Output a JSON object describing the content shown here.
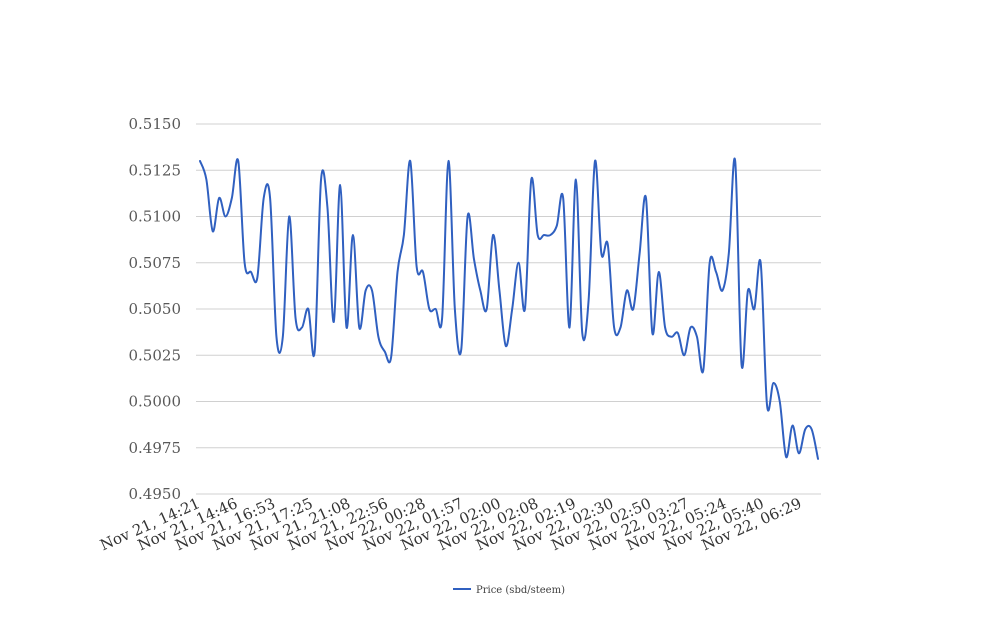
{
  "chart_data": {
    "type": "line",
    "title": "",
    "xlabel": "",
    "ylabel": "",
    "ylim": [
      0.495,
      0.515
    ],
    "yticks": [
      "0.4950",
      "0.4975",
      "0.5000",
      "0.5025",
      "0.5050",
      "0.5075",
      "0.5100",
      "0.5125",
      "0.5150"
    ],
    "xticks": [
      "Nov 21, 14:21",
      "Nov 21, 14:46",
      "Nov 21, 16:53",
      "Nov 21, 17:25",
      "Nov 21, 21:08",
      "Nov 21, 22:56",
      "Nov 22, 00:28",
      "Nov 22, 01:57",
      "Nov 22, 02:00",
      "Nov 22, 02:08",
      "Nov 22, 02:19",
      "Nov 22, 02:30",
      "Nov 22, 02:50",
      "Nov 22, 03:27",
      "Nov 22, 05:24",
      "Nov 22, 05:40",
      "Nov 22, 06:29"
    ],
    "grid": true,
    "legend_position": "bottom",
    "series": [
      {
        "name": "Price (sbd/steem)",
        "color": "#3060c0",
        "values": [
          0.513,
          0.512,
          0.5092,
          0.511,
          0.51,
          0.511,
          0.513,
          0.5075,
          0.507,
          0.5067,
          0.511,
          0.511,
          0.5035,
          0.5035,
          0.51,
          0.5045,
          0.504,
          0.505,
          0.5027,
          0.512,
          0.5105,
          0.5043,
          0.5117,
          0.504,
          0.509,
          0.504,
          0.506,
          0.506,
          0.5035,
          0.5027,
          0.5024,
          0.507,
          0.509,
          0.513,
          0.5073,
          0.507,
          0.505,
          0.505,
          0.5045,
          0.513,
          0.505,
          0.5028,
          0.51,
          0.5077,
          0.506,
          0.505,
          0.509,
          0.506,
          0.503,
          0.505,
          0.5075,
          0.505,
          0.512,
          0.509,
          0.509,
          0.509,
          0.5095,
          0.511,
          0.504,
          0.512,
          0.5037,
          0.5055,
          0.513,
          0.508,
          0.5085,
          0.504,
          0.504,
          0.506,
          0.505,
          0.508,
          0.511,
          0.5037,
          0.507,
          0.504,
          0.5035,
          0.5037,
          0.5025,
          0.504,
          0.5035,
          0.5017,
          0.5075,
          0.507,
          0.506,
          0.508,
          0.513,
          0.502,
          0.506,
          0.505,
          0.5075,
          0.4998,
          0.501,
          0.5,
          0.497,
          0.4987,
          0.4972,
          0.4985,
          0.4985,
          0.4969
        ]
      }
    ]
  }
}
